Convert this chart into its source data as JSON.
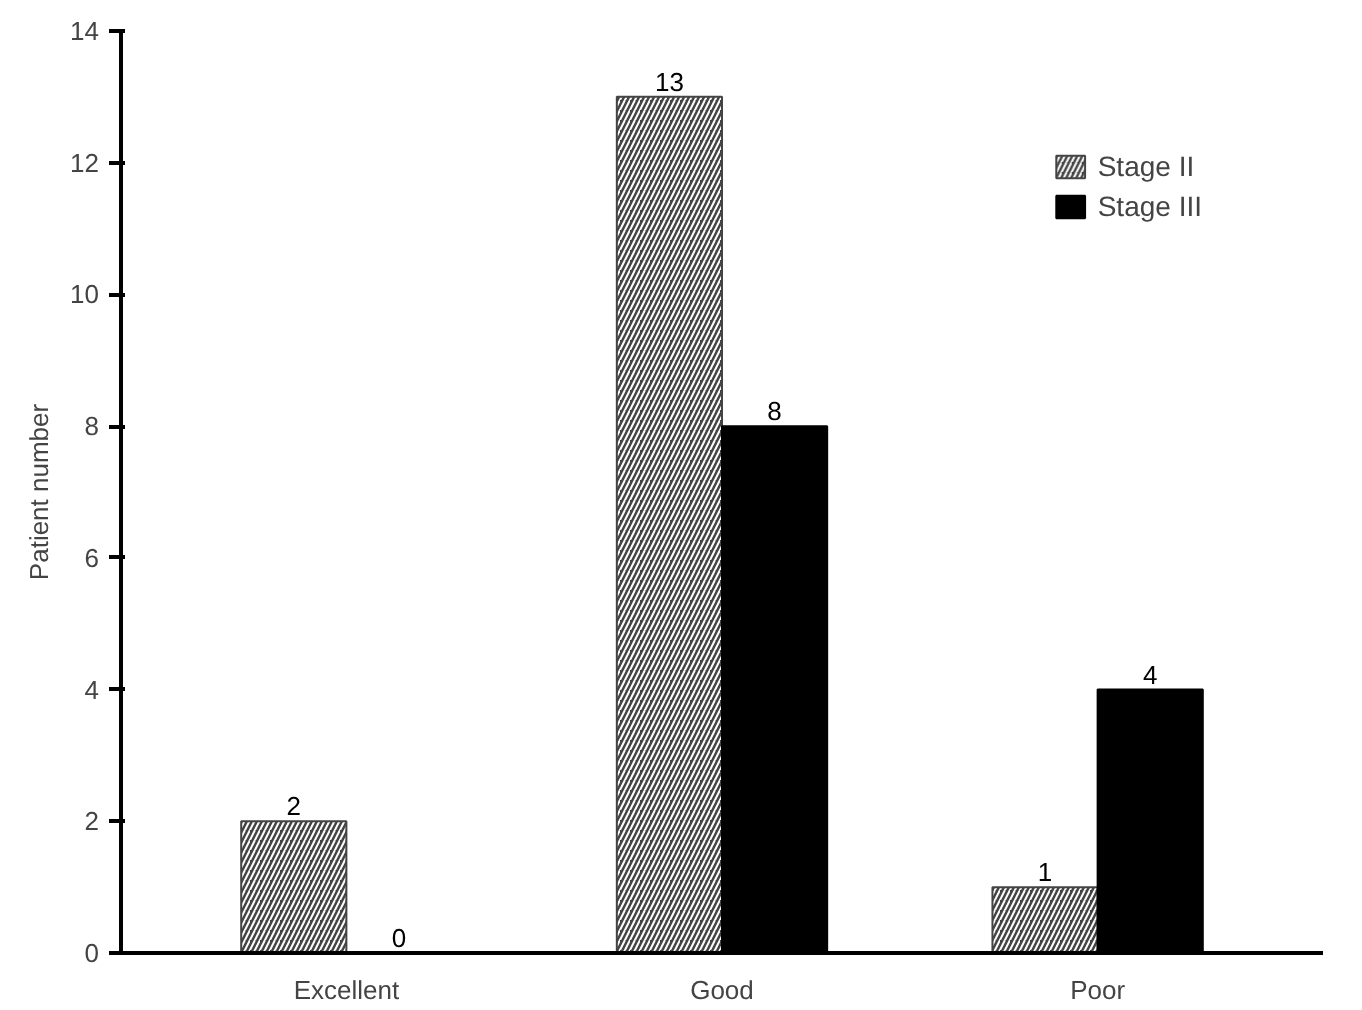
{
  "chart_data": {
    "type": "bar",
    "ylabel": "Patient number",
    "categories": [
      "Excellent",
      "Good",
      "Poor"
    ],
    "series": [
      {
        "name": "Stage II",
        "color": "#444444",
        "values": [
          2,
          13,
          1
        ]
      },
      {
        "name": "Stage III",
        "color": "#000000",
        "values": [
          0,
          8,
          4
        ]
      }
    ],
    "ylim": [
      0,
      14
    ],
    "yticks": [
      0,
      2,
      4,
      6,
      8,
      10,
      12,
      14
    ],
    "grid": false,
    "legend": "top right",
    "data_labels": true
  }
}
